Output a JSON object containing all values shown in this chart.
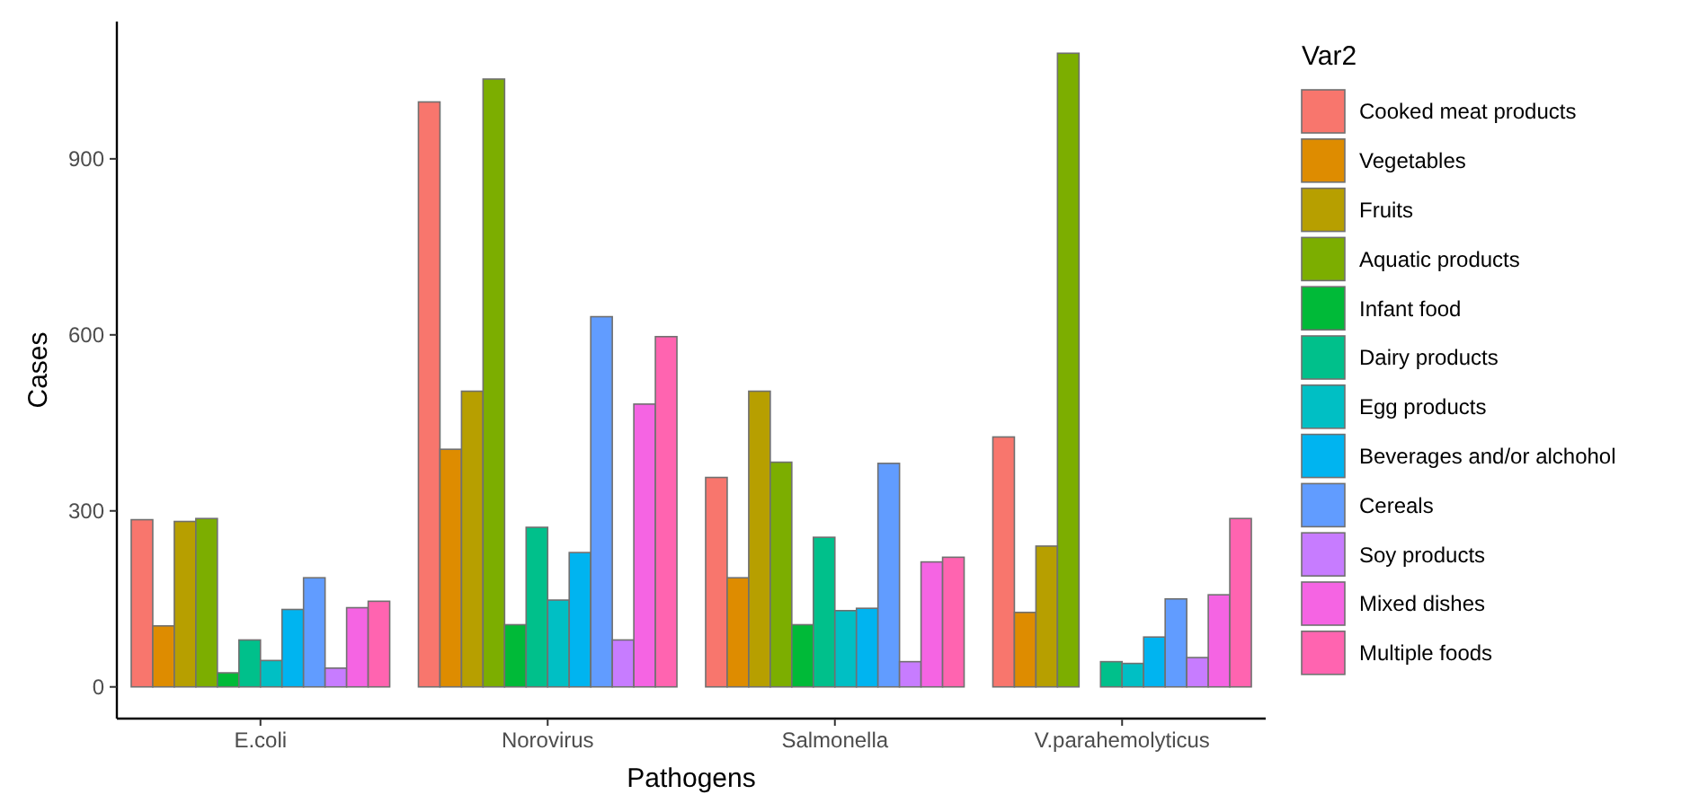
{
  "chart_data": {
    "type": "bar",
    "xlabel": "Pathogens",
    "ylabel": "Cases",
    "legend_title": "Var2",
    "legend": "right",
    "grid": false,
    "categories": [
      "E.coli",
      "Norovirus",
      "Salmonella",
      "V.parahemolyticus"
    ],
    "ylim": [
      -54,
      1134
    ],
    "yticks": [
      0,
      300,
      600,
      900
    ],
    "series": [
      {
        "name": "Cooked meat products",
        "color": "#f8766d",
        "values": [
          285,
          997,
          357,
          426
        ]
      },
      {
        "name": "Vegetables",
        "color": "#de8c00",
        "values": [
          104,
          405,
          186,
          127
        ]
      },
      {
        "name": "Fruits",
        "color": "#b79f00",
        "values": [
          282,
          504,
          504,
          240
        ]
      },
      {
        "name": "Aquatic products",
        "color": "#7cae00",
        "values": [
          287,
          1036,
          383,
          1080
        ]
      },
      {
        "name": "Infant food",
        "color": "#00ba38",
        "values": [
          24,
          106,
          106,
          0
        ]
      },
      {
        "name": "Dairy products",
        "color": "#00c08b",
        "values": [
          80,
          272,
          255,
          43
        ]
      },
      {
        "name": "Egg products",
        "color": "#00bfc4",
        "values": [
          45,
          148,
          130,
          40
        ]
      },
      {
        "name": "Beverages and/or alchohol",
        "color": "#00b4f0",
        "values": [
          132,
          229,
          134,
          85
        ]
      },
      {
        "name": "Cereals",
        "color": "#619cff",
        "values": [
          186,
          631,
          381,
          150
        ]
      },
      {
        "name": "Soy products",
        "color": "#c77cff",
        "values": [
          32,
          80,
          43,
          50
        ]
      },
      {
        "name": "Mixed dishes",
        "color": "#f564e3",
        "values": [
          135,
          482,
          213,
          157
        ]
      },
      {
        "name": "Multiple foods",
        "color": "#ff64b0",
        "values": [
          146,
          597,
          221,
          287
        ]
      }
    ]
  }
}
